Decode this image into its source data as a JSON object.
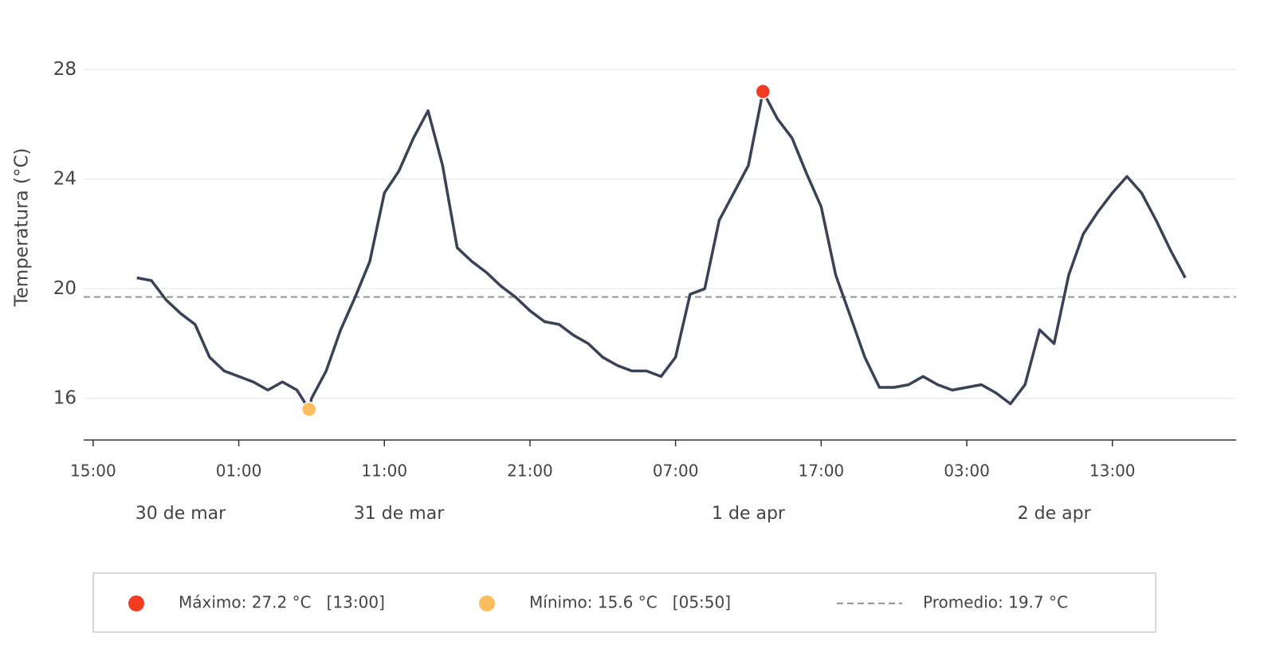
{
  "chart_data": {
    "type": "line",
    "y_label": "Temperatura (°C)",
    "color": "#3b4256",
    "x": [
      18,
      19,
      20,
      21,
      22,
      23,
      24,
      25,
      26,
      27,
      28,
      29,
      29.83,
      30,
      31,
      32,
      33,
      34,
      35,
      36,
      37,
      38,
      39,
      40,
      41,
      42,
      43,
      44,
      45,
      46,
      47,
      48,
      49,
      50,
      51,
      52,
      53,
      54,
      55,
      56,
      57,
      58,
      59,
      60,
      61,
      62,
      63,
      64,
      65,
      66,
      67,
      68,
      69,
      70,
      71,
      72,
      73,
      74,
      75,
      76,
      77,
      78,
      79,
      80,
      81,
      82,
      83,
      84,
      85,
      86,
      87,
      88,
      89,
      90
    ],
    "values": [
      20.4,
      20.3,
      19.6,
      19.1,
      18.7,
      17.5,
      17.0,
      16.8,
      16.6,
      16.3,
      16.6,
      16.3,
      15.6,
      16.0,
      17.0,
      18.5,
      19.7,
      21.0,
      23.5,
      24.3,
      25.5,
      26.5,
      24.5,
      21.5,
      21.0,
      20.6,
      20.1,
      19.7,
      19.2,
      18.8,
      18.7,
      18.3,
      18.0,
      17.5,
      17.2,
      17.0,
      17.0,
      16.8,
      17.5,
      19.8,
      20.0,
      22.5,
      23.5,
      24.5,
      27.2,
      26.2,
      25.5,
      24.2,
      23.0,
      20.5,
      19.0,
      17.5,
      16.4,
      16.4,
      16.5,
      16.8,
      16.5,
      16.3,
      16.4,
      16.5,
      16.2,
      15.8,
      16.5,
      18.5,
      18.0,
      20.5,
      22.0,
      22.8,
      23.5,
      24.1,
      23.5,
      22.5,
      21.4,
      20.4
    ],
    "xlim": [
      14.35,
      93.5
    ],
    "ylim": [
      14.48,
      29.9
    ],
    "yticks": [
      16,
      20,
      24,
      28
    ],
    "grid": true,
    "xticks": [
      {
        "value": 15,
        "label": "15:00"
      },
      {
        "value": 25,
        "label": "01:00"
      },
      {
        "value": 35,
        "label": "11:00"
      },
      {
        "value": 45,
        "label": "21:00"
      },
      {
        "value": 55,
        "label": "07:00"
      },
      {
        "value": 65,
        "label": "17:00"
      },
      {
        "value": 75,
        "label": "03:00"
      },
      {
        "value": 85,
        "label": "13:00"
      }
    ],
    "date_labels": [
      {
        "value": 21,
        "label": "30 de mar"
      },
      {
        "value": 36,
        "label": "31 de mar"
      },
      {
        "value": 60,
        "label": "1 de apr"
      },
      {
        "value": 81,
        "label": "2 de apr"
      }
    ],
    "average": 19.7,
    "average_color": "#999999",
    "points": [
      {
        "x": 61,
        "value": 27.2,
        "color": "#f23c22"
      },
      {
        "x": 29.83,
        "value": 15.6,
        "color": "#fbbd5e"
      }
    ],
    "legend": [
      {
        "label": "Máximo: 27.2 °C   [13:00]"
      },
      {
        "label": "Mínimo: 15.6 °C   [05:50]"
      },
      {
        "label": "Promedio: 19.7 °C"
      }
    ]
  }
}
